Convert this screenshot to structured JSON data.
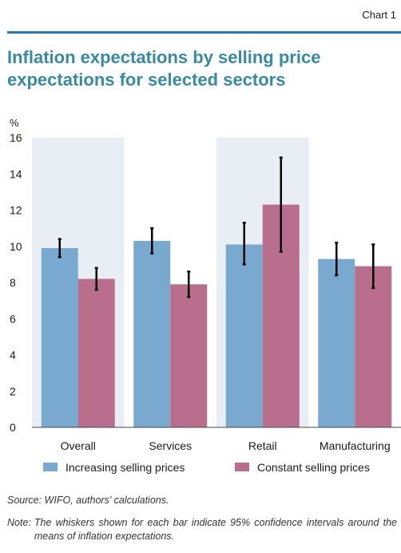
{
  "header": {
    "chart_label": "Chart 1"
  },
  "title": "Inflation expectations by selling price expectations for selected sectors",
  "chart_data": {
    "type": "bar",
    "unit_label": "%",
    "categories": [
      "Overall",
      "Services",
      "Retail",
      "Manufacturing"
    ],
    "series": [
      {
        "name": "Increasing selling prices",
        "color": "#7aa9cf",
        "values": [
          9.9,
          10.3,
          10.1,
          9.3
        ],
        "ci_low": [
          9.4,
          9.6,
          9.0,
          8.4
        ],
        "ci_high": [
          10.4,
          11.0,
          11.3,
          10.2
        ]
      },
      {
        "name": "Constant selling prices",
        "color": "#b86e8c",
        "values": [
          8.2,
          7.9,
          12.3,
          8.9
        ],
        "ci_low": [
          7.6,
          7.2,
          9.7,
          7.7
        ],
        "ci_high": [
          8.8,
          8.6,
          14.9,
          10.1
        ]
      }
    ],
    "ylim": [
      0,
      16
    ],
    "yticks": [
      0,
      2,
      4,
      6,
      8,
      10,
      12,
      14,
      16
    ],
    "grid": false,
    "legend_position": "bottom",
    "background_color": "#e9eef5"
  },
  "footer": {
    "source": "Source: WIFO, authors' calculations.",
    "note_prefix": "Note:",
    "note_text": "The whiskers shown for each bar indicate 95% confidence intervals around the means of inflation expectations."
  }
}
